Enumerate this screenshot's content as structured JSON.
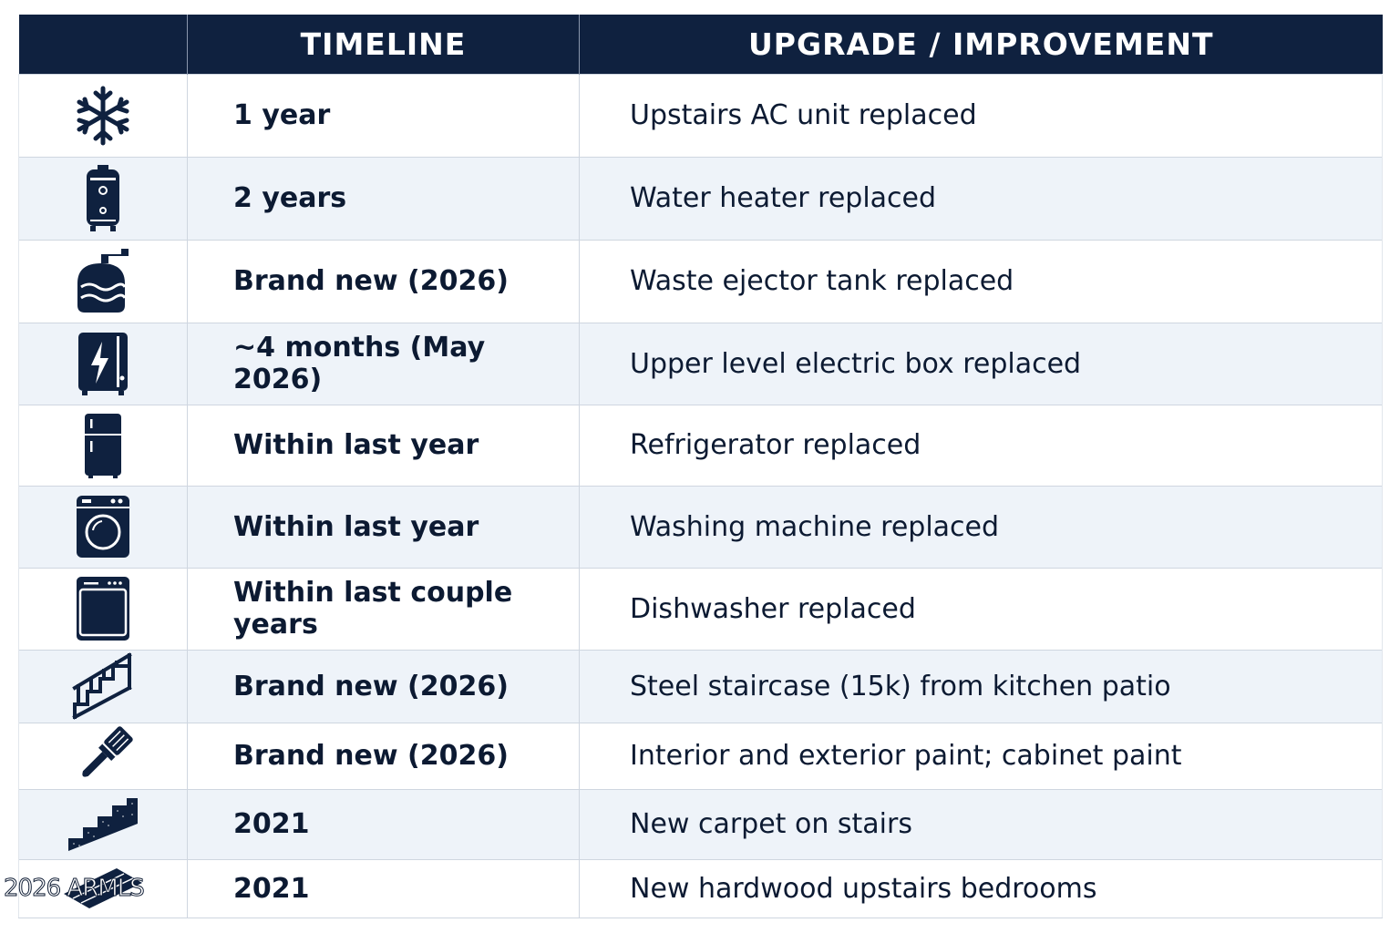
{
  "header": {
    "timeline": "TIMELINE",
    "upgrade": "UPGRADE / IMPROVEMENT"
  },
  "colors": {
    "header_bg": "#0f213f",
    "icon": "#0f213f",
    "row_alt": "#eef3f9",
    "text": "#0c1a32"
  },
  "rows": [
    {
      "icon": "snowflake-icon",
      "timeline": "1 year",
      "upgrade": "Upstairs AC unit replaced"
    },
    {
      "icon": "water-heater-icon",
      "timeline": "2 years",
      "upgrade": "Water heater replaced"
    },
    {
      "icon": "tank-icon",
      "timeline": "Brand new (2026)",
      "upgrade": "Waste ejector tank replaced"
    },
    {
      "icon": "electric-box-icon",
      "timeline": "~4 months (May 2026)",
      "upgrade": "Upper level electric box replaced"
    },
    {
      "icon": "refrigerator-icon",
      "timeline": "Within last year",
      "upgrade": "Refrigerator replaced"
    },
    {
      "icon": "washing-machine-icon",
      "timeline": "Within last year",
      "upgrade": "Washing machine replaced"
    },
    {
      "icon": "dishwasher-icon",
      "timeline": "Within last couple years",
      "upgrade": "Dishwasher replaced"
    },
    {
      "icon": "staircase-icon",
      "timeline": "Brand new (2026)",
      "upgrade": "Steel staircase (15k) from kitchen patio"
    },
    {
      "icon": "paintbrush-icon",
      "timeline": "Brand new (2026)",
      "upgrade": "Interior and exterior paint; cabinet paint"
    },
    {
      "icon": "carpet-stairs-icon",
      "timeline": "2021",
      "upgrade": "New carpet on stairs"
    },
    {
      "icon": "hardwood-icon",
      "timeline": "2021",
      "upgrade": "New hardwood upstairs bedrooms"
    }
  ],
  "watermark": "2026 ARMLS"
}
